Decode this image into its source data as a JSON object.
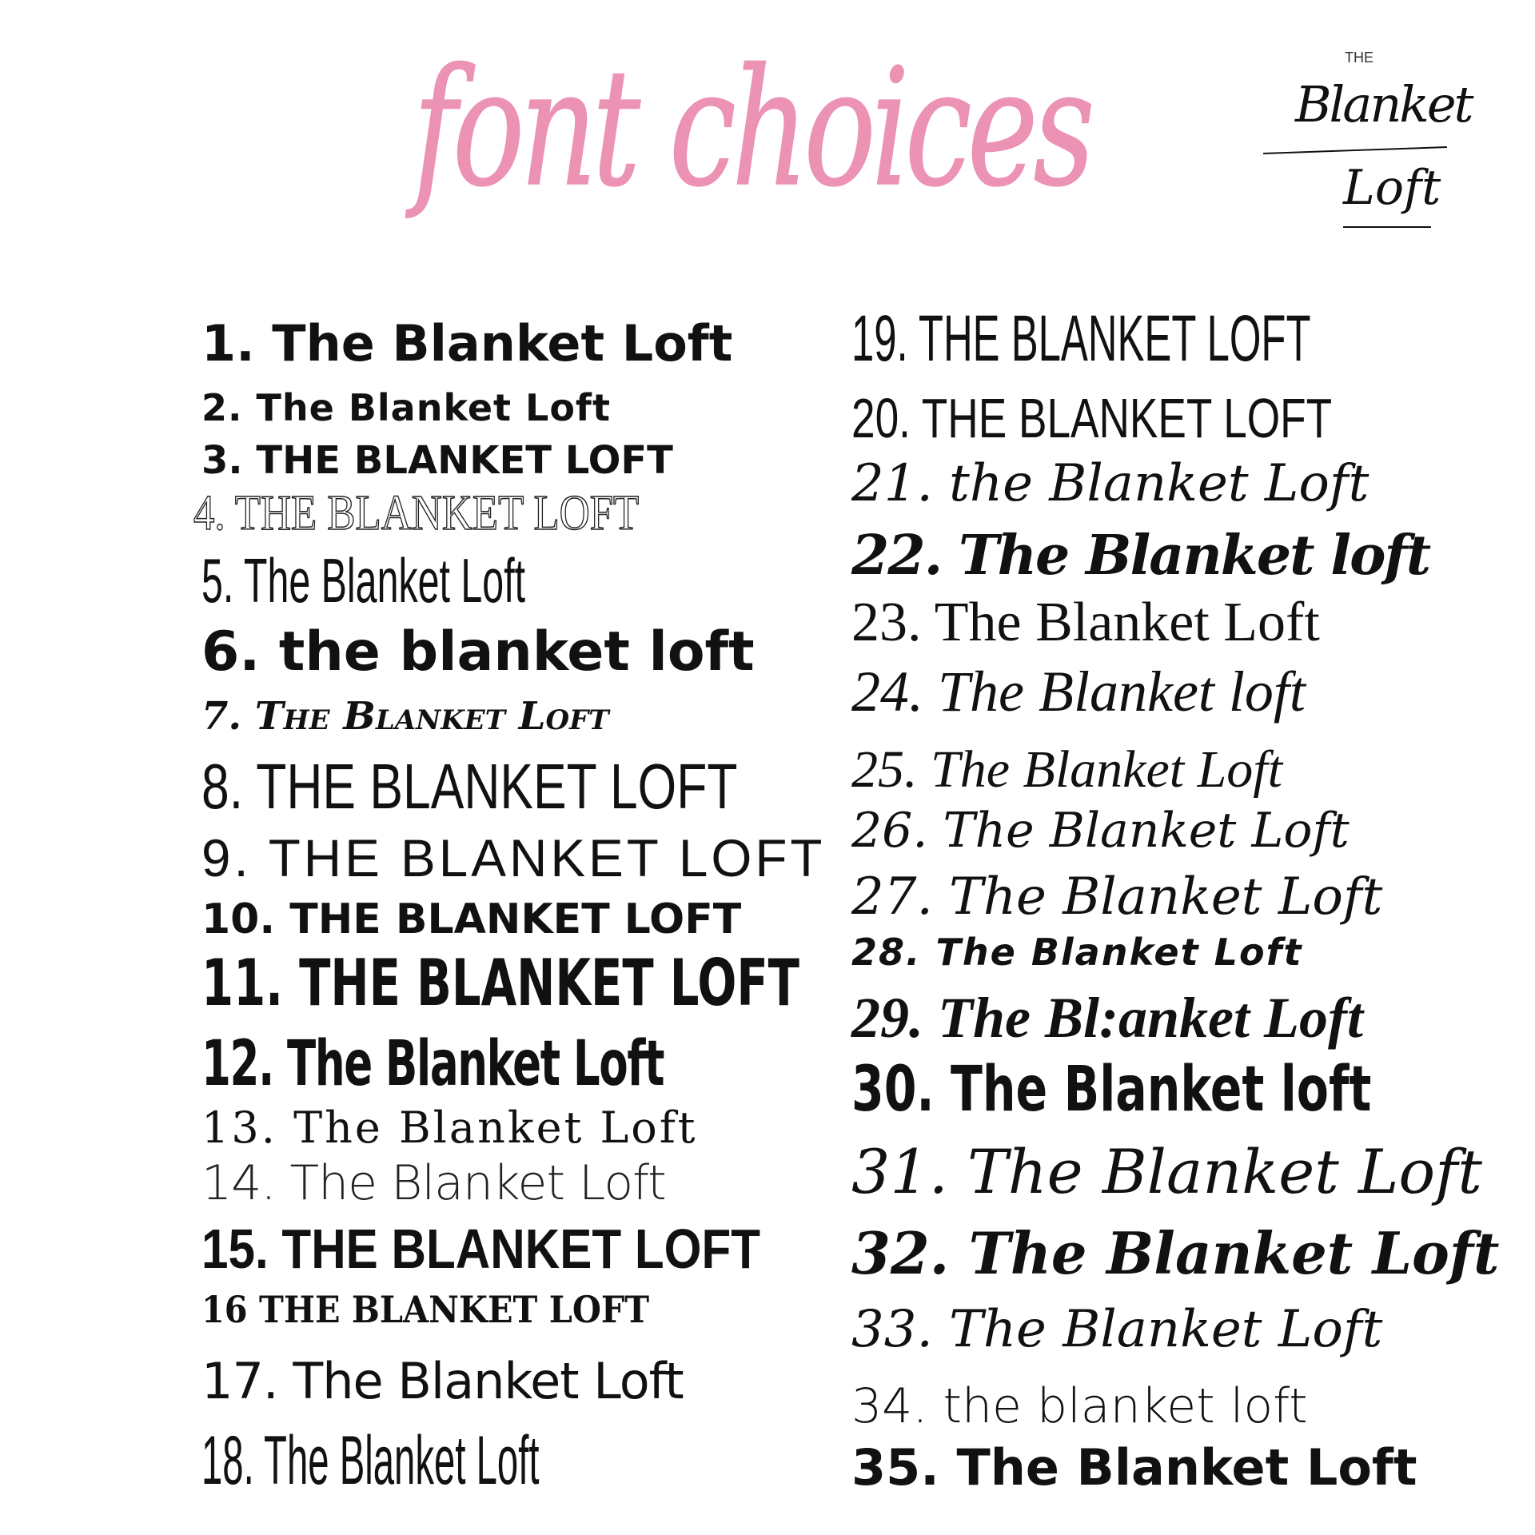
{
  "title": "font choices",
  "colors": {
    "title": "#ec92b5",
    "text": "#111111"
  },
  "logo": {
    "top": "THE",
    "line1": "Blanket",
    "line2": "Loft"
  },
  "left_column": [
    {
      "number": "1.",
      "text": "The Blanket Loft"
    },
    {
      "number": "2.",
      "text": "The Blanket Loft"
    },
    {
      "number": "3.",
      "text": "THE BLANKET LOFT"
    },
    {
      "number": "4.",
      "text": "THE BLANKET LOFT"
    },
    {
      "number": "5.",
      "text": "The Blanket Loft"
    },
    {
      "number": "6.",
      "text": "the blanket loft"
    },
    {
      "number": "7.",
      "text": "The Blanket Loft"
    },
    {
      "number": "8.",
      "text": "THE BLANKET LOFT"
    },
    {
      "number": "9.",
      "text": "THE BLANKET LOFT"
    },
    {
      "number": "10.",
      "text": "THE BLANKET LOFT"
    },
    {
      "number": "11.",
      "text": "THE BLANKET LOFT"
    },
    {
      "number": "12.",
      "text": "The Blanket Loft"
    },
    {
      "number": "13.",
      "text": "The Blanket Loft"
    },
    {
      "number": "14.",
      "text": "The Blanket Loft"
    },
    {
      "number": "15.",
      "text": "THE BLANKET LOFT"
    },
    {
      "number": "16",
      "text": "THE BLANKET LOFT"
    },
    {
      "number": "17.",
      "text": "The Blanket Loft"
    },
    {
      "number": "18.",
      "text": "The Blanket Loft"
    }
  ],
  "right_column": [
    {
      "number": "19.",
      "text": "THE BLANKET LOFT"
    },
    {
      "number": "20.",
      "text": "THE BLANKET LOFT"
    },
    {
      "number": "21.",
      "text": "the Blanket Loft"
    },
    {
      "number": "22.",
      "text": "The Blanket loft"
    },
    {
      "number": "23.",
      "text": "The Blanket Loft"
    },
    {
      "number": "24.",
      "text": "The Blanket loft"
    },
    {
      "number": "25.",
      "text": "The Blanket Loft"
    },
    {
      "number": "26.",
      "text": "The Blanket Loft"
    },
    {
      "number": "27.",
      "text": "The Blanket Loft"
    },
    {
      "number": "28.",
      "text": "The Blanket Loft"
    },
    {
      "number": "29.",
      "text": "The Bl:anket Loft"
    },
    {
      "number": "30.",
      "text": "The Blanket loft"
    },
    {
      "number": "31.",
      "text": "The Blanket Loft"
    },
    {
      "number": "32.",
      "text": "The Blanket Loft"
    },
    {
      "number": "33.",
      "text": "The Blanket Loft"
    },
    {
      "number": "34.",
      "text": "the blanket loft"
    },
    {
      "number": "35.",
      "text": "The Blanket Loft"
    }
  ]
}
